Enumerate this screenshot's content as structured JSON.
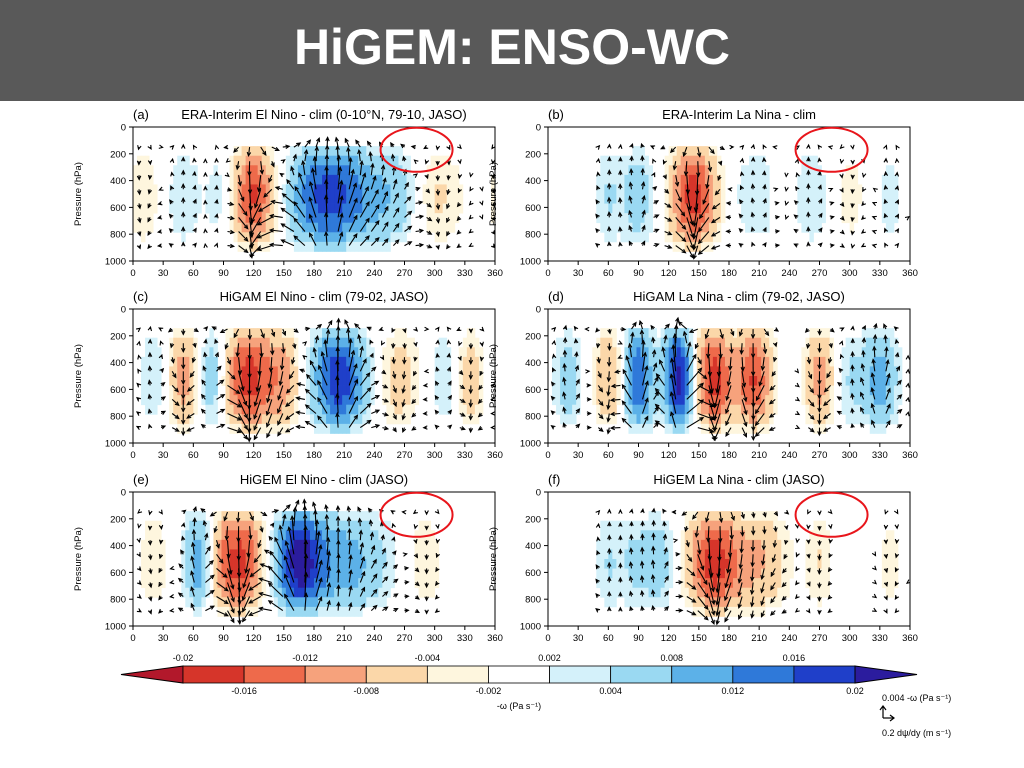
{
  "slide": {
    "title": "HiGEM: ENSO-WC"
  },
  "chart_data": {
    "type": "heatmap",
    "panels": [
      {
        "id": "a",
        "label": "(a)",
        "title": "ERA-Interim El Nino - clim (0-10°N, 79-10, JASO)",
        "highlight_circle": true,
        "signals": [
          {
            "lon": 120,
            "amp": -0.018,
            "w": 14
          },
          {
            "lon": 195,
            "amp": 0.018,
            "w": 35
          },
          {
            "lon": 150,
            "amp": -0.004,
            "w": 15
          },
          {
            "lon": 265,
            "amp": 0.005,
            "w": 18
          },
          {
            "lon": 50,
            "amp": 0.004,
            "w": 12
          },
          {
            "lon": 300,
            "amp": -0.005,
            "w": 20
          },
          {
            "lon": 10,
            "amp": -0.004,
            "w": 12
          },
          {
            "lon": 85,
            "amp": 0.003,
            "w": 10
          }
        ]
      },
      {
        "id": "b",
        "label": "(b)",
        "title": "ERA-Interim La Nina - clim",
        "highlight_circle": true,
        "signals": [
          {
            "lon": 145,
            "amp": -0.018,
            "w": 16
          },
          {
            "lon": 90,
            "amp": 0.006,
            "w": 12
          },
          {
            "lon": 60,
            "amp": 0.004,
            "w": 10
          },
          {
            "lon": 210,
            "amp": 0.004,
            "w": 20
          },
          {
            "lon": 235,
            "amp": -0.004,
            "w": 10
          },
          {
            "lon": 260,
            "amp": 0.004,
            "w": 15
          },
          {
            "lon": 300,
            "amp": -0.003,
            "w": 12
          },
          {
            "lon": 340,
            "amp": 0.003,
            "w": 10
          }
        ]
      },
      {
        "id": "c",
        "label": "(c)",
        "title": "HiGAM El Nino - clim (79-02, JASO)",
        "highlight_circle": false,
        "signals": [
          {
            "lon": 115,
            "amp": -0.018,
            "w": 18
          },
          {
            "lon": 205,
            "amp": 0.019,
            "w": 18
          },
          {
            "lon": 150,
            "amp": -0.008,
            "w": 12
          },
          {
            "lon": 50,
            "amp": -0.01,
            "w": 10
          },
          {
            "lon": 80,
            "amp": 0.008,
            "w": 10
          },
          {
            "lon": 265,
            "amp": -0.006,
            "w": 14
          },
          {
            "lon": 310,
            "amp": 0.004,
            "w": 10
          },
          {
            "lon": 335,
            "amp": -0.006,
            "w": 10
          },
          {
            "lon": 20,
            "amp": 0.004,
            "w": 10
          }
        ]
      },
      {
        "id": "d",
        "label": "(d)",
        "title": "HiGAM La Nina - clim (79-02, JASO)",
        "highlight_circle": false,
        "signals": [
          {
            "lon": 130,
            "amp": 0.022,
            "w": 10
          },
          {
            "lon": 165,
            "amp": -0.018,
            "w": 14
          },
          {
            "lon": 205,
            "amp": -0.016,
            "w": 12
          },
          {
            "lon": 90,
            "amp": 0.016,
            "w": 10
          },
          {
            "lon": 60,
            "amp": -0.008,
            "w": 10
          },
          {
            "lon": 270,
            "amp": -0.01,
            "w": 10
          },
          {
            "lon": 300,
            "amp": 0.004,
            "w": 10
          },
          {
            "lon": 330,
            "amp": 0.01,
            "w": 12
          },
          {
            "lon": 20,
            "amp": 0.006,
            "w": 10
          }
        ]
      },
      {
        "id": "e",
        "label": "(e)",
        "title": "HiGEM El Nino - clim (JASO)",
        "highlight_circle": true,
        "signals": [
          {
            "lon": 110,
            "amp": -0.016,
            "w": 14
          },
          {
            "lon": 165,
            "amp": 0.02,
            "w": 16
          },
          {
            "lon": 210,
            "amp": 0.01,
            "w": 30
          },
          {
            "lon": 65,
            "amp": 0.01,
            "w": 10
          },
          {
            "lon": 90,
            "amp": -0.008,
            "w": 10
          },
          {
            "lon": 290,
            "amp": -0.004,
            "w": 12
          },
          {
            "lon": 20,
            "amp": -0.004,
            "w": 10
          }
        ]
      },
      {
        "id": "f",
        "label": "(f)",
        "title": "HiGEM La Nina - clim (JASO)",
        "highlight_circle": true,
        "signals": [
          {
            "lon": 165,
            "amp": -0.018,
            "w": 18
          },
          {
            "lon": 210,
            "amp": -0.008,
            "w": 20
          },
          {
            "lon": 110,
            "amp": 0.006,
            "w": 12
          },
          {
            "lon": 60,
            "amp": 0.004,
            "w": 10
          },
          {
            "lon": 85,
            "amp": 0.004,
            "w": 10
          },
          {
            "lon": 270,
            "amp": -0.004,
            "w": 10
          },
          {
            "lon": 340,
            "amp": -0.003,
            "w": 10
          }
        ]
      }
    ],
    "axes": {
      "x_ticks": [
        "0",
        "30",
        "60",
        "90",
        "120",
        "150",
        "180",
        "210",
        "240",
        "270",
        "300",
        "330",
        "360"
      ],
      "xlim": [
        0,
        360
      ],
      "y_ticks": [
        "0",
        "200",
        "400",
        "600",
        "800",
        "1000"
      ],
      "ylim": [
        0,
        1000
      ],
      "ylabel": "Pressure (hPa)"
    },
    "colorbar": {
      "label": "-ω (Pa s⁻¹)",
      "levels": [
        -0.02,
        -0.016,
        -0.012,
        -0.008,
        -0.004,
        -0.002,
        0.002,
        0.004,
        0.008,
        0.012,
        0.016,
        0.02
      ],
      "colors": [
        "#b2182b",
        "#d6352a",
        "#ee6a4b",
        "#f6a27c",
        "#fbd7a9",
        "#fef6de",
        "#ffffff",
        "#d4f1fa",
        "#9ad9f2",
        "#5cb1e8",
        "#2f79d9",
        "#1f3fc9",
        "#2b1c9e"
      ],
      "top_labels": [
        "-0.02",
        "-0.012",
        "-0.004",
        "0.002",
        "0.008",
        "0.016"
      ],
      "bottom_labels": [
        "-0.016",
        "-0.008",
        "-0.002",
        "0.004",
        "0.012",
        "0.02"
      ]
    },
    "reference_vector": {
      "vertical_label": "0.004 -ω (Pa s⁻¹)",
      "horizontal_label": "0.2 dψ/dy (m s⁻¹)"
    }
  }
}
